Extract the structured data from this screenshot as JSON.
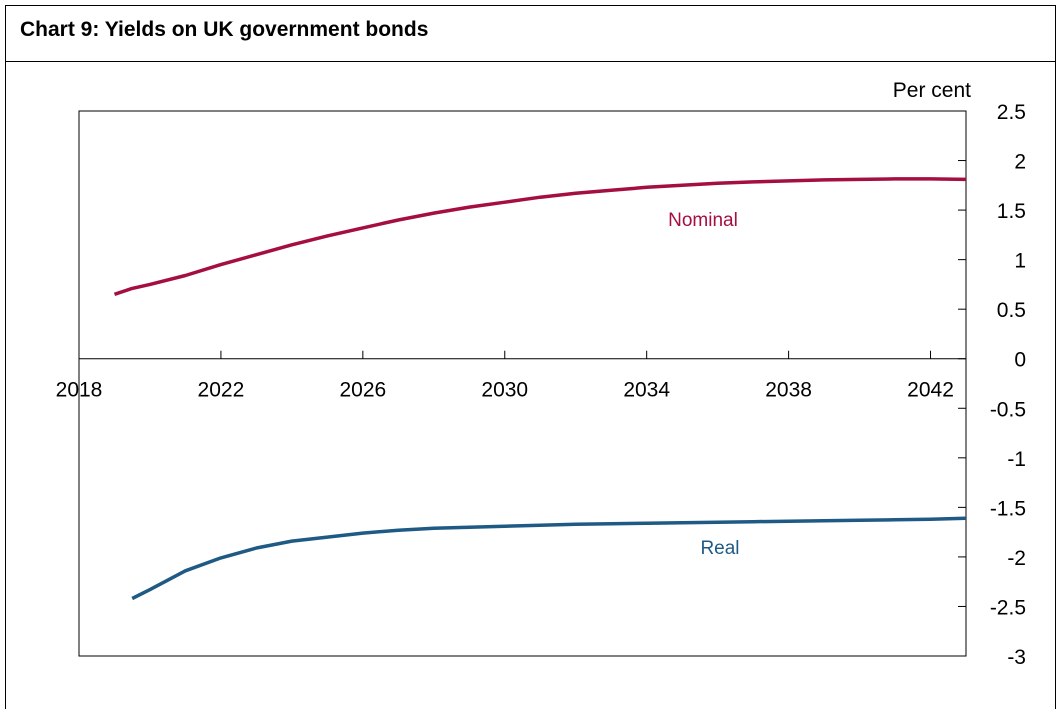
{
  "chart_data": {
    "type": "line",
    "title": "Chart 9: Yields on UK government bonds",
    "xlabel": "",
    "ylabel": "Per cent",
    "xlim": [
      2018,
      2043
    ],
    "ylim": [
      -3,
      2.5
    ],
    "x_ticks": [
      "2018",
      "2022",
      "2026",
      "2030",
      "2034",
      "2038",
      "2042"
    ],
    "y_ticks": [
      "2.5",
      "2",
      "1.5",
      "1",
      "0.5",
      "0",
      "-0.5",
      "-1",
      "-1.5",
      "-2",
      "-2.5",
      "-3"
    ],
    "grid": false,
    "series": [
      {
        "name": "Nominal",
        "color": "#A50F3F",
        "x": [
          2019,
          2019.5,
          2020,
          2021,
          2022,
          2023,
          2024,
          2025,
          2026,
          2027,
          2028,
          2029,
          2030,
          2031,
          2032,
          2033,
          2034,
          2035,
          2036,
          2037,
          2038,
          2039,
          2040,
          2041,
          2042,
          2043
        ],
        "y": [
          0.65,
          0.71,
          0.75,
          0.84,
          0.95,
          1.05,
          1.15,
          1.24,
          1.32,
          1.4,
          1.47,
          1.53,
          1.58,
          1.63,
          1.67,
          1.7,
          1.73,
          1.75,
          1.77,
          1.785,
          1.795,
          1.805,
          1.81,
          1.815,
          1.815,
          1.81
        ]
      },
      {
        "name": "Real",
        "color": "#1F5A85",
        "x": [
          2019.5,
          2020,
          2021,
          2022,
          2023,
          2024,
          2025,
          2026,
          2027,
          2028,
          2029,
          2030,
          2031,
          2032,
          2033,
          2034,
          2035,
          2036,
          2037,
          2038,
          2039,
          2040,
          2041,
          2042,
          2043
        ],
        "y": [
          -2.42,
          -2.33,
          -2.14,
          -2.01,
          -1.91,
          -1.84,
          -1.8,
          -1.76,
          -1.73,
          -1.71,
          -1.7,
          -1.69,
          -1.68,
          -1.67,
          -1.665,
          -1.66,
          -1.655,
          -1.65,
          -1.645,
          -1.64,
          -1.635,
          -1.63,
          -1.625,
          -1.62,
          -1.61
        ]
      }
    ]
  }
}
